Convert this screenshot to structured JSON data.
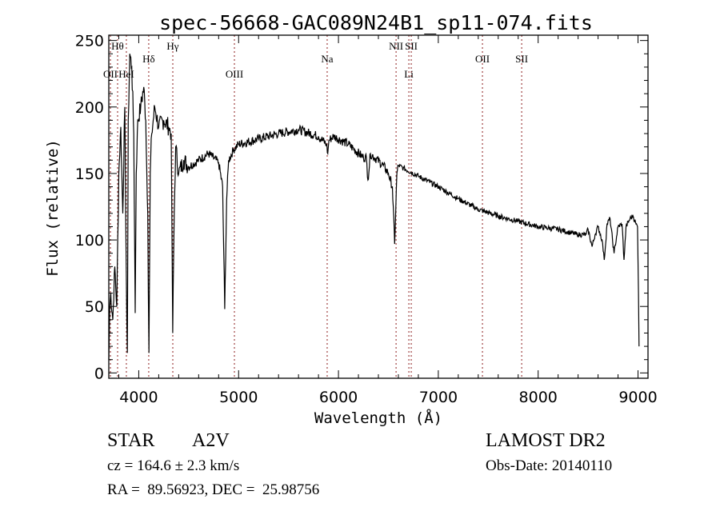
{
  "chart_data": {
    "type": "line",
    "title": "spec-56668-GAC089N24B1_sp11-074.fits",
    "xlabel": "Wavelength (Å)",
    "ylabel": "Flux (relative)",
    "xlim": [
      3700,
      9100
    ],
    "ylim": [
      -4,
      254
    ],
    "xticks": [
      4000,
      5000,
      6000,
      7000,
      8000,
      9000
    ],
    "yticks": [
      0,
      50,
      100,
      150,
      200,
      250
    ],
    "grid": false,
    "line_color": "#000000",
    "marker_color": "#8b1a1a",
    "series": [
      {
        "name": "spectrum",
        "x": [
          3700,
          3710,
          3720,
          3740,
          3760,
          3780,
          3800,
          3820,
          3840,
          3860,
          3880,
          3886,
          3895,
          3910,
          3930,
          3950,
          3964,
          3975,
          3990,
          4020,
          4050,
          4070,
          4090,
          4102,
          4115,
          4130,
          4160,
          4200,
          4250,
          4300,
          4325,
          4340,
          4355,
          4370,
          4400,
          4450,
          4500,
          4600,
          4700,
          4800,
          4840,
          4861,
          4880,
          4900,
          4950,
          5000,
          5200,
          5400,
          5600,
          5800,
          5880,
          5893,
          5905,
          5950,
          6100,
          6250,
          6280,
          6295,
          6320,
          6450,
          6500,
          6540,
          6563,
          6585,
          6600,
          6650,
          6800,
          7000,
          7200,
          7400,
          7600,
          7800,
          8000,
          8200,
          8400,
          8480,
          8500,
          8540,
          8570,
          8600,
          8640,
          8662,
          8690,
          8720,
          8760,
          8800,
          8840,
          8860,
          8880,
          8920,
          8950,
          8980,
          8995,
          9005,
          9010
        ],
        "y": [
          10,
          50,
          60,
          40,
          80,
          50,
          150,
          185,
          120,
          200,
          40,
          15,
          190,
          240,
          230,
          180,
          45,
          150,
          190,
          200,
          215,
          190,
          120,
          15,
          150,
          180,
          200,
          185,
          190,
          185,
          180,
          30,
          120,
          170,
          150,
          160,
          155,
          160,
          165,
          158,
          140,
          48,
          130,
          160,
          168,
          172,
          176,
          180,
          183,
          178,
          172,
          165,
          175,
          178,
          172,
          162,
          162,
          145,
          165,
          156,
          150,
          140,
          97,
          150,
          156,
          154,
          148,
          140,
          131,
          123,
          118,
          114,
          110,
          108,
          104,
          104,
          108,
          95,
          104,
          110,
          100,
          85,
          112,
          116,
          90,
          110,
          112,
          85,
          110,
          116,
          118,
          112,
          110,
          60,
          20
        ]
      }
    ],
    "line_markers": [
      {
        "label": "OII",
        "wavelength": 3716,
        "row": 3
      },
      {
        "label": "Hθ",
        "wavelength": 3788,
        "row": 1
      },
      {
        "label": "HeI",
        "wavelength": 3876,
        "row": 3
      },
      {
        "label": "Hδ",
        "wavelength": 4100,
        "row": 2
      },
      {
        "label": "Hγ",
        "wavelength": 4341,
        "row": 1
      },
      {
        "label": "OIII",
        "wavelength": 4958,
        "row": 3
      },
      {
        "label": "Na",
        "wavelength": 5887,
        "row": 2
      },
      {
        "label": "NII",
        "wavelength": 6577,
        "row": 1
      },
      {
        "label": "Li",
        "wavelength": 6705,
        "row": 3
      },
      {
        "label": "SII",
        "wavelength": 6729,
        "row": 1
      },
      {
        "label": "OII",
        "wavelength": 7442,
        "row": 2
      },
      {
        "label": "SII",
        "wavelength": 7835,
        "row": 2
      }
    ]
  },
  "info": {
    "class": "STAR",
    "subclass": "A2V",
    "survey": "LAMOST DR2",
    "cz": "cz = 164.6 ± 2.3 km/s",
    "obs_date": "Obs-Date: 20140110",
    "coords": "RA =  89.56923, DEC =  25.98756"
  }
}
